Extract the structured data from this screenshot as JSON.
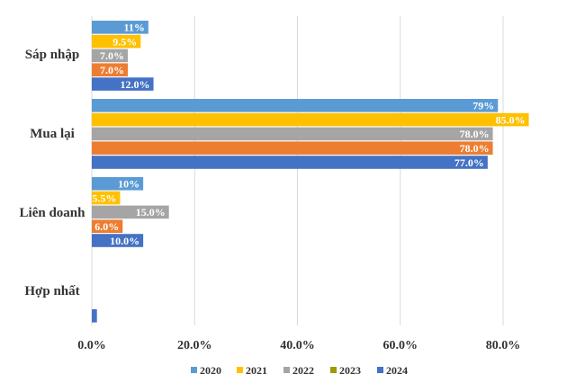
{
  "chart_data": {
    "type": "bar",
    "orientation": "horizontal",
    "title": "",
    "xlabel": "",
    "ylabel": "",
    "xlim": [
      0,
      90
    ],
    "x_ticks": [
      "0.0%",
      "20.0%",
      "40.0%",
      "60.0%",
      "80.0%"
    ],
    "x_tick_values": [
      0,
      20,
      40,
      60,
      80
    ],
    "grid": "vertical",
    "legend_position": "bottom",
    "categories": [
      "Sáp nhập",
      "Mua lại",
      "Liên doanh",
      "Hợp nhất"
    ],
    "series": [
      {
        "name": "2020",
        "color": "#5B9BD5",
        "values": [
          11,
          79,
          10,
          null
        ],
        "labels": [
          "11%",
          "79%",
          "10%",
          ""
        ]
      },
      {
        "name": "2021",
        "color": "#FFC000",
        "values": [
          9.5,
          85,
          5.5,
          null
        ],
        "labels": [
          "9.5%",
          "85.0%",
          "5.5%",
          ""
        ]
      },
      {
        "name": "2022",
        "color": "#A5A5A5",
        "values": [
          7,
          78,
          15,
          null
        ],
        "labels": [
          "7.0%",
          "78.0%",
          "15.0%",
          ""
        ]
      },
      {
        "name": "2023",
        "color": "#ED7D31",
        "values": [
          7,
          78,
          6,
          null
        ],
        "labels": [
          "7.0%",
          "78.0%",
          "6.0%",
          ""
        ]
      },
      {
        "name": "2024",
        "color": "#4472C4",
        "values": [
          12,
          77,
          10,
          1
        ],
        "labels": [
          "12.0%",
          "77.0%",
          "10.0%",
          ""
        ]
      }
    ],
    "legend_colors": [
      "#5B9BD5",
      "#FFC000",
      "#A5A5A5",
      "#9C9C00",
      "#4472C4"
    ]
  }
}
